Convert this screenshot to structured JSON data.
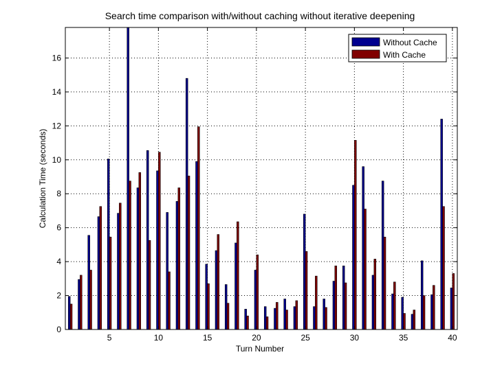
{
  "chart_data": {
    "type": "bar",
    "title": "Search time comparison with/without caching without iterative deepening",
    "xlabel": "Turn Number",
    "ylabel": "Calculation Time (seconds)",
    "xlim": [
      0.5,
      40.5
    ],
    "ylim": [
      0,
      17.8
    ],
    "grid": true,
    "legend_position": "top-right",
    "x_ticks": [
      5,
      10,
      15,
      20,
      25,
      30,
      35,
      40
    ],
    "y_ticks": [
      0,
      2,
      4,
      6,
      8,
      10,
      12,
      14,
      16
    ],
    "x": [
      1,
      2,
      3,
      4,
      5,
      6,
      7,
      8,
      9,
      10,
      11,
      12,
      13,
      14,
      15,
      16,
      17,
      18,
      19,
      20,
      21,
      22,
      23,
      24,
      25,
      26,
      27,
      28,
      29,
      30,
      31,
      32,
      33,
      34,
      35,
      36,
      37,
      38,
      39,
      40
    ],
    "series": [
      {
        "name": "Without Cache",
        "color": "#00008f",
        "values": [
          1.95,
          2.95,
          5.55,
          6.65,
          10.05,
          6.85,
          17.8,
          8.35,
          10.55,
          9.35,
          6.9,
          7.55,
          14.8,
          9.9,
          3.85,
          4.65,
          2.65,
          5.1,
          1.2,
          3.5,
          1.35,
          1.25,
          1.8,
          1.35,
          6.8,
          1.35,
          1.8,
          2.85,
          3.75,
          8.5,
          9.6,
          3.2,
          8.75,
          2.1,
          1.9,
          0.9,
          4.05,
          2.05,
          12.4,
          2.45
        ]
      },
      {
        "name": "With Cache",
        "color": "#800000",
        "values": [
          1.5,
          3.2,
          3.5,
          7.25,
          5.45,
          7.45,
          8.75,
          9.25,
          5.25,
          10.45,
          3.4,
          8.35,
          9.05,
          11.95,
          2.7,
          5.6,
          1.55,
          6.35,
          0.8,
          4.4,
          0.75,
          1.6,
          1.15,
          1.7,
          4.6,
          3.15,
          1.3,
          3.75,
          2.75,
          11.15,
          7.1,
          4.15,
          5.45,
          2.8,
          0.95,
          1.15,
          2.0,
          2.6,
          7.25,
          3.3
        ]
      }
    ]
  }
}
